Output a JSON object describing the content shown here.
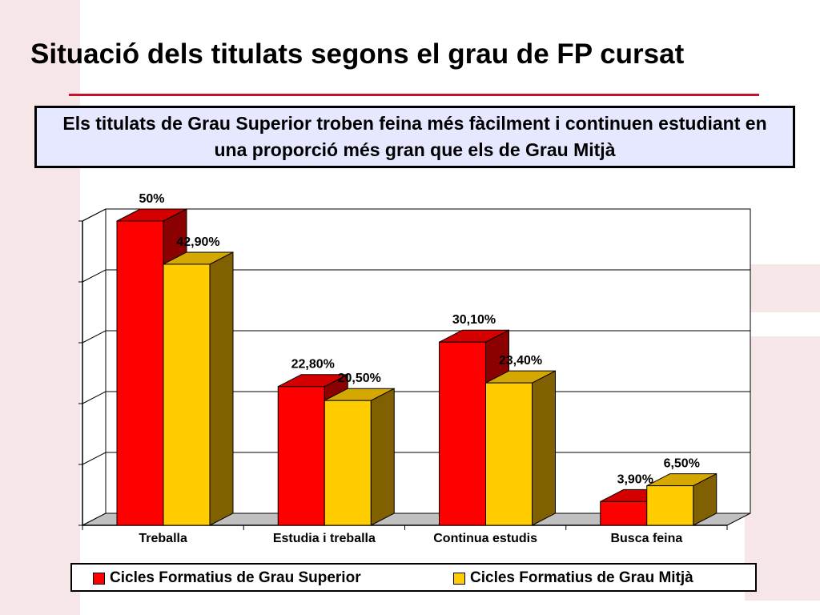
{
  "slide": {
    "title": "Situació dels titulats segons el grau de FP cursat",
    "callout": "Els titulats de Grau Superior troben feina més fàcilment i continuen estudiant en una proporció més gran que els de Grau Mitjà"
  },
  "colors": {
    "accent_rule": "#c8102e",
    "callout_bg": "#e6e8ff",
    "watermark": "#e8b8bc"
  },
  "chart_data": {
    "type": "bar",
    "categories": [
      "Treballa",
      "Estudia i treballa",
      "Continua estudis",
      "Busca feina"
    ],
    "series": [
      {
        "name": "Cicles Formatius de Grau Superior",
        "values": [
          50,
          22.8,
          30.1,
          3.9
        ],
        "labels": [
          "50%",
          "22,80%",
          "30,10%",
          "3,90%"
        ],
        "color": "#ff0000",
        "top_color": "#d40000",
        "side_color": "#8b0000"
      },
      {
        "name": "Cicles Formatius de Grau Mitjà",
        "values": [
          42.9,
          20.5,
          23.4,
          6.5
        ],
        "labels": [
          "42,90%",
          "20,50%",
          "23,40%",
          "6,50%"
        ],
        "color": "#ffcc00",
        "top_color": "#d4a800",
        "side_color": "#806000"
      }
    ],
    "ylim": [
      0,
      50
    ],
    "grid": true,
    "style": "3d-clustered",
    "legend_position": "bottom"
  }
}
